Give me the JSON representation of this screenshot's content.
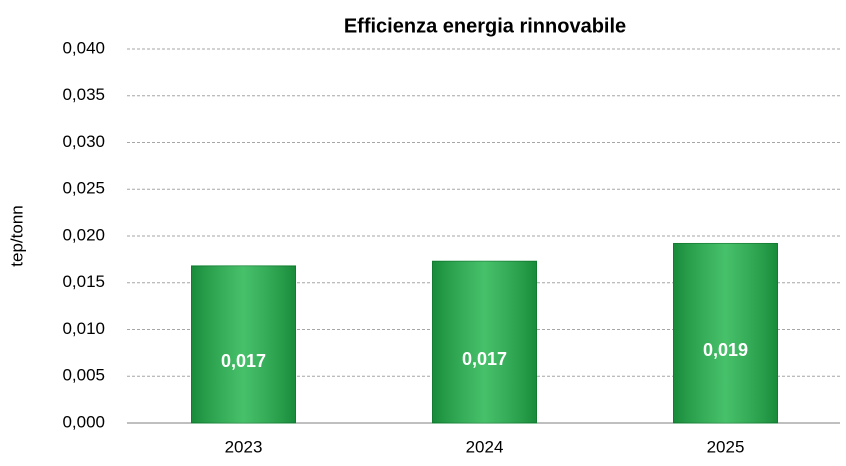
{
  "chart_data": {
    "type": "bar",
    "title": "Efficienza energia rinnovabile",
    "y_label": "tep/tonn",
    "categories": [
      "2023",
      "2024",
      "2025"
    ],
    "values": [
      0.0168,
      0.0173,
      0.0192
    ],
    "value_labels": [
      "0,017",
      "0,017",
      "0,019"
    ],
    "color": "#1fb34a",
    "ylim": [
      0,
      0.04
    ],
    "yticks": [
      {
        "value": 0,
        "label": "0,000"
      },
      {
        "value": 0.005,
        "label": "0,005"
      },
      {
        "value": 0.01,
        "label": "0,010"
      },
      {
        "value": 0.015,
        "label": "0,015"
      },
      {
        "value": 0.02,
        "label": "0,020"
      },
      {
        "value": 0.025,
        "label": "0,025"
      },
      {
        "value": 0.03,
        "label": "0,030"
      },
      {
        "value": 0.035,
        "label": "0,035"
      },
      {
        "value": 0.04,
        "label": "0,040"
      }
    ],
    "grid": true
  }
}
